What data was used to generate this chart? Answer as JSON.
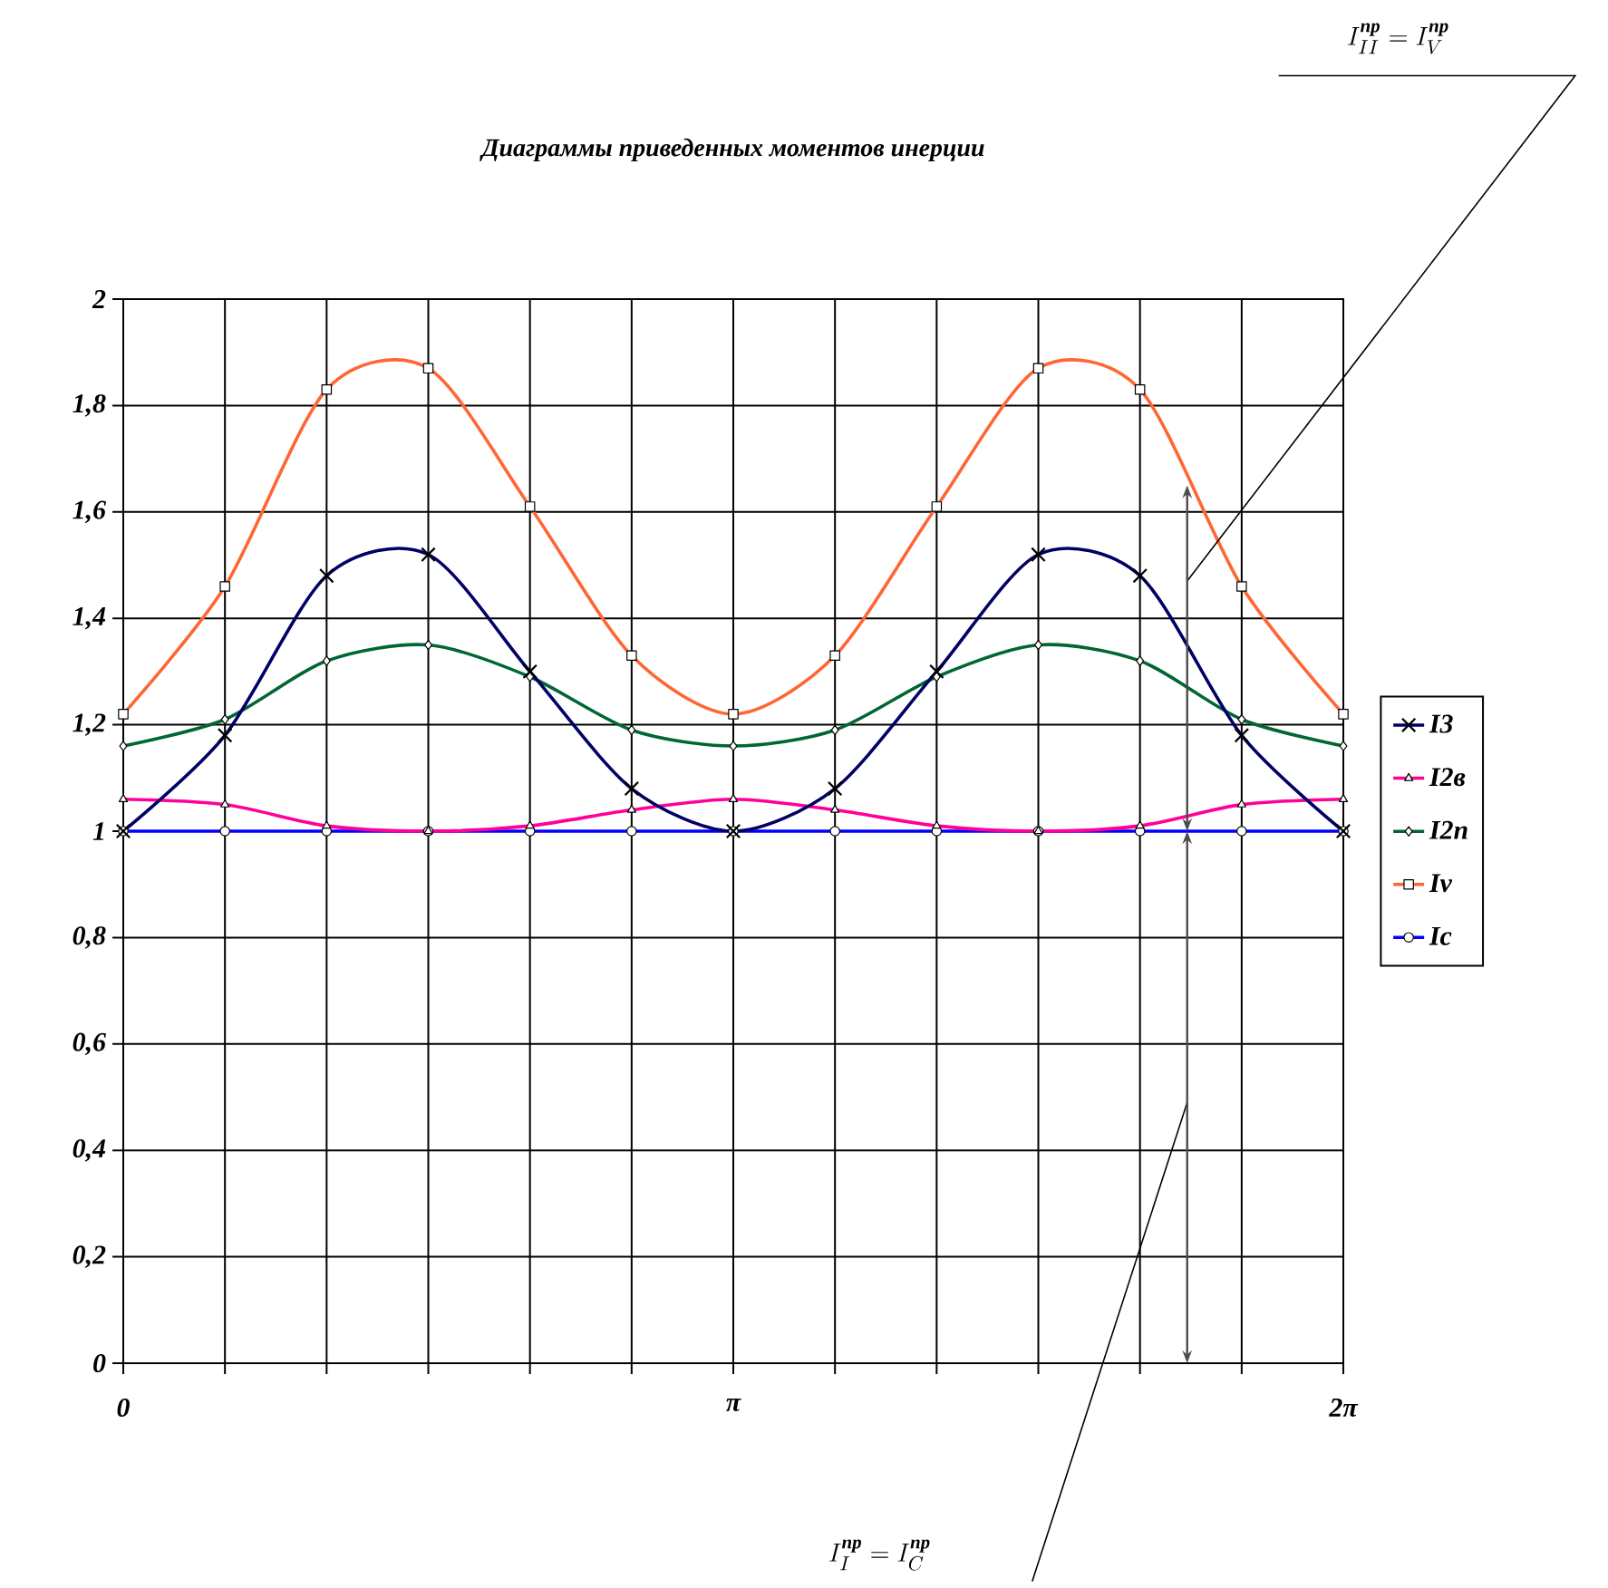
{
  "chart_data": {
    "type": "line",
    "title": "Диаграммы приведенных моментов инерции",
    "categories": [
      "0",
      null,
      null,
      null,
      null,
      null,
      "π",
      null,
      null,
      null,
      null,
      null,
      "2π"
    ],
    "series": [
      {
        "name": "I3",
        "color": "#000066",
        "marker": "cross",
        "values": [
          1.0,
          1.18,
          1.48,
          1.52,
          1.3,
          1.08,
          1.0,
          1.08,
          1.3,
          1.52,
          1.48,
          1.18,
          1.0
        ]
      },
      {
        "name": "I2в",
        "color": "#ff0099",
        "marker": "triangle",
        "values": [
          1.06,
          1.05,
          1.01,
          1.0,
          1.01,
          1.04,
          1.06,
          1.04,
          1.01,
          1.0,
          1.01,
          1.05,
          1.06
        ]
      },
      {
        "name": "I2п",
        "color": "#006633",
        "marker": "diamond",
        "values": [
          1.16,
          1.21,
          1.32,
          1.35,
          1.29,
          1.19,
          1.16,
          1.19,
          1.29,
          1.35,
          1.32,
          1.21,
          1.16
        ]
      },
      {
        "name": "Iv",
        "color": "#ff6633",
        "marker": "square",
        "values": [
          1.22,
          1.46,
          1.83,
          1.87,
          1.61,
          1.33,
          1.22,
          1.33,
          1.61,
          1.87,
          1.83,
          1.46,
          1.22
        ]
      },
      {
        "name": "Ic",
        "color": "#0000ff",
        "marker": "circle",
        "values": [
          1.0,
          1.0,
          1.0,
          1.0,
          1.0,
          1.0,
          1.0,
          1.0,
          1.0,
          1.0,
          1.0,
          1.0,
          1.0
        ]
      }
    ],
    "ylim": [
      0,
      2
    ],
    "yticks": [
      0,
      {
        "value": 0.2,
        "label": "0,2"
      },
      {
        "value": 0.4,
        "label": "0,4"
      },
      {
        "value": 0.6,
        "label": "0,6"
      },
      {
        "value": 0.8,
        "label": "0,8"
      },
      1,
      {
        "value": 1.2,
        "label": "1,2"
      },
      {
        "value": 1.4,
        "label": "1,4"
      },
      {
        "value": 1.6,
        "label": "1,6"
      },
      {
        "value": 1.8,
        "label": "1,8"
      },
      2
    ],
    "grid": true,
    "legend": "right",
    "annotations": [
      "I^{\\text{пр}}_{II} = I^{\\text{пр}}_{V}",
      "I^{\\text{пр}}_{I} = I^{\\text{пр}}_{C}"
    ]
  }
}
